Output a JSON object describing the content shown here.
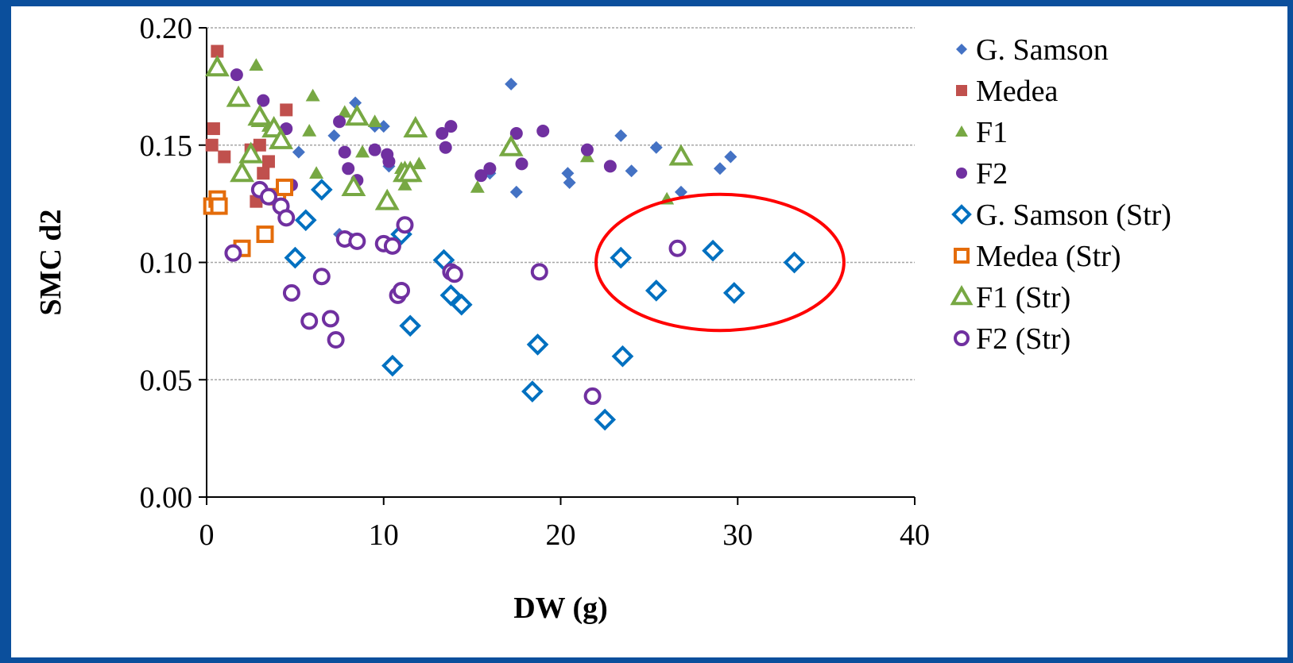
{
  "chart_data": {
    "type": "scatter",
    "xlabel": "DW (g)",
    "ylabel": "SMC d2",
    "xlim": [
      0,
      40
    ],
    "ylim": [
      0,
      0.2
    ],
    "xticks": [
      "0",
      "10",
      "20",
      "30",
      "40"
    ],
    "yticks": [
      "0.00",
      "0.05",
      "0.10",
      "0.15",
      "0.20"
    ],
    "grid": "horizontal",
    "legend_position": "right",
    "series": [
      {
        "name": "G. Samson",
        "marker": "diamond-filled",
        "color": "#4472c4",
        "points": [
          [
            5.2,
            0.147
          ],
          [
            7.2,
            0.154
          ],
          [
            8.4,
            0.168
          ],
          [
            9.5,
            0.158
          ],
          [
            10.0,
            0.158
          ],
          [
            10.3,
            0.141
          ],
          [
            7.5,
            0.112
          ],
          [
            8.2,
            0.11
          ],
          [
            10.8,
            0.112
          ],
          [
            11.2,
            0.137
          ],
          [
            16.0,
            0.138
          ],
          [
            17.2,
            0.176
          ],
          [
            17.5,
            0.13
          ],
          [
            20.4,
            0.138
          ],
          [
            20.5,
            0.134
          ],
          [
            23.4,
            0.154
          ],
          [
            24.0,
            0.139
          ],
          [
            25.4,
            0.149
          ],
          [
            26.8,
            0.13
          ],
          [
            29.0,
            0.14
          ],
          [
            29.6,
            0.145
          ]
        ]
      },
      {
        "name": "Medea",
        "marker": "square-filled",
        "color": "#c0504d",
        "points": [
          [
            0.3,
            0.15
          ],
          [
            0.4,
            0.157
          ],
          [
            0.6,
            0.19
          ],
          [
            1.0,
            0.145
          ],
          [
            2.5,
            0.148
          ],
          [
            2.8,
            0.126
          ],
          [
            3.0,
            0.15
          ],
          [
            3.2,
            0.138
          ],
          [
            3.5,
            0.143
          ],
          [
            4.5,
            0.165
          ]
        ]
      },
      {
        "name": "F1",
        "marker": "triangle-filled",
        "color": "#77a843",
        "points": [
          [
            2.8,
            0.184
          ],
          [
            2.9,
            0.16
          ],
          [
            3.5,
            0.158
          ],
          [
            5.8,
            0.156
          ],
          [
            6.0,
            0.171
          ],
          [
            6.2,
            0.138
          ],
          [
            7.8,
            0.164
          ],
          [
            8.8,
            0.147
          ],
          [
            9.5,
            0.16
          ],
          [
            11.0,
            0.14
          ],
          [
            11.2,
            0.133
          ],
          [
            12.0,
            0.142
          ],
          [
            15.3,
            0.132
          ],
          [
            17.0,
            0.148
          ],
          [
            21.5,
            0.145
          ],
          [
            26.0,
            0.127
          ]
        ]
      },
      {
        "name": "F2",
        "marker": "circle-filled",
        "color": "#7030a0",
        "points": [
          [
            1.7,
            0.18
          ],
          [
            3.2,
            0.169
          ],
          [
            4.5,
            0.157
          ],
          [
            4.8,
            0.133
          ],
          [
            7.5,
            0.16
          ],
          [
            7.8,
            0.147
          ],
          [
            8.0,
            0.14
          ],
          [
            8.5,
            0.135
          ],
          [
            9.5,
            0.148
          ],
          [
            10.2,
            0.146
          ],
          [
            10.3,
            0.143
          ],
          [
            13.3,
            0.155
          ],
          [
            13.5,
            0.149
          ],
          [
            13.8,
            0.158
          ],
          [
            15.5,
            0.137
          ],
          [
            16.0,
            0.14
          ],
          [
            17.5,
            0.155
          ],
          [
            17.8,
            0.142
          ],
          [
            19.0,
            0.156
          ],
          [
            21.5,
            0.148
          ],
          [
            22.8,
            0.141
          ]
        ]
      },
      {
        "name": "G. Samson (Str)",
        "marker": "diamond-open",
        "color": "#0070c0",
        "points": [
          [
            5.0,
            0.102
          ],
          [
            5.6,
            0.118
          ],
          [
            6.5,
            0.131
          ],
          [
            10.5,
            0.056
          ],
          [
            11.0,
            0.112
          ],
          [
            11.5,
            0.073
          ],
          [
            13.4,
            0.101
          ],
          [
            13.8,
            0.086
          ],
          [
            14.4,
            0.082
          ],
          [
            18.4,
            0.045
          ],
          [
            18.7,
            0.065
          ],
          [
            22.5,
            0.033
          ],
          [
            23.4,
            0.102
          ],
          [
            23.5,
            0.06
          ],
          [
            25.4,
            0.088
          ],
          [
            28.6,
            0.105
          ],
          [
            29.8,
            0.087
          ],
          [
            33.2,
            0.1
          ]
        ]
      },
      {
        "name": "Medea (Str)",
        "marker": "square-open",
        "color": "#e46c0a",
        "points": [
          [
            0.3,
            0.124
          ],
          [
            0.6,
            0.127
          ],
          [
            0.7,
            0.124
          ],
          [
            2.0,
            0.106
          ],
          [
            3.3,
            0.112
          ],
          [
            4.0,
            0.128
          ],
          [
            4.4,
            0.132
          ]
        ]
      },
      {
        "name": "F1 (Str)",
        "marker": "triangle-open",
        "color": "#77a843",
        "points": [
          [
            0.6,
            0.183
          ],
          [
            1.8,
            0.17
          ],
          [
            2.0,
            0.138
          ],
          [
            2.5,
            0.146
          ],
          [
            3.0,
            0.162
          ],
          [
            3.8,
            0.157
          ],
          [
            4.2,
            0.152
          ],
          [
            8.3,
            0.132
          ],
          [
            8.5,
            0.162
          ],
          [
            10.2,
            0.126
          ],
          [
            11.2,
            0.138
          ],
          [
            11.5,
            0.138
          ],
          [
            11.8,
            0.157
          ],
          [
            17.2,
            0.149
          ],
          [
            26.8,
            0.145
          ]
        ]
      },
      {
        "name": "F2 (Str)",
        "marker": "circle-open",
        "color": "#7030a0",
        "points": [
          [
            1.5,
            0.104
          ],
          [
            3.0,
            0.131
          ],
          [
            3.5,
            0.128
          ],
          [
            4.2,
            0.124
          ],
          [
            4.5,
            0.119
          ],
          [
            4.8,
            0.087
          ],
          [
            5.8,
            0.075
          ],
          [
            6.5,
            0.094
          ],
          [
            7.0,
            0.076
          ],
          [
            7.3,
            0.067
          ],
          [
            7.8,
            0.11
          ],
          [
            8.5,
            0.109
          ],
          [
            10.0,
            0.108
          ],
          [
            10.5,
            0.107
          ],
          [
            10.8,
            0.086
          ],
          [
            11.0,
            0.088
          ],
          [
            11.2,
            0.116
          ],
          [
            13.8,
            0.096
          ],
          [
            14.0,
            0.095
          ],
          [
            18.8,
            0.096
          ],
          [
            21.8,
            0.043
          ],
          [
            26.6,
            0.106
          ]
        ]
      }
    ],
    "annotations": [
      {
        "type": "ellipse",
        "color": "#ff0000",
        "center": [
          29.0,
          0.1
        ],
        "rx_data": 7.0,
        "ry_data": 0.029
      }
    ]
  }
}
